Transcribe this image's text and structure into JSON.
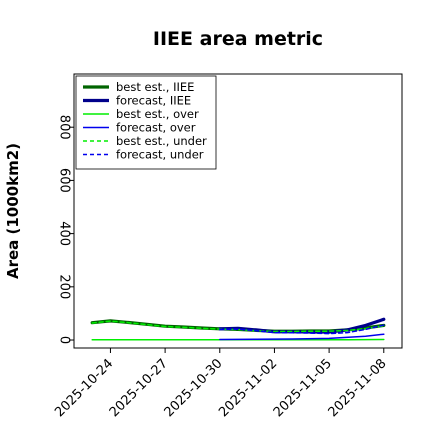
{
  "chart_data": {
    "type": "line",
    "title": "IIEE area metric",
    "xlabel": "",
    "ylabel": "Area (1000km2)",
    "ylim": [
      -30,
      1000
    ],
    "xlim": [
      "2025-10-22",
      "2025-11-09"
    ],
    "y_ticks": [
      0,
      200,
      400,
      600,
      800
    ],
    "x_ticks": [
      {
        "label": "2025-10-24",
        "color": "#000000"
      },
      {
        "label": "2025-10-27",
        "color": "#000000"
      },
      {
        "label": "2025-10-30",
        "color": "#008000"
      },
      {
        "label": "2025-11-02",
        "color": "#000000"
      },
      {
        "label": "2025-11-05",
        "color": "#000000"
      },
      {
        "label": "2025-11-08",
        "color": "#000000"
      }
    ],
    "grid": false,
    "legend_position": "top-left",
    "series": [
      {
        "name": "best est., IIEE",
        "color": "#006400",
        "width": 3.2,
        "dash": "",
        "x": [
          "2025-10-23",
          "2025-10-24",
          "2025-10-25",
          "2025-10-26",
          "2025-10-27",
          "2025-10-28",
          "2025-10-29",
          "2025-10-30",
          "2025-10-31",
          "2025-11-01",
          "2025-11-02",
          "2025-11-03",
          "2025-11-04",
          "2025-11-05",
          "2025-11-06",
          "2025-11-07",
          "2025-11-08"
        ],
        "y": [
          65,
          72,
          66,
          59,
          52,
          49,
          45,
          42,
          40,
          36,
          33,
          33,
          34,
          34,
          38,
          45,
          55
        ]
      },
      {
        "name": "forecast, IIEE",
        "color": "#00008b",
        "width": 3.2,
        "dash": "",
        "x": [
          "2025-10-30",
          "2025-10-31",
          "2025-11-01",
          "2025-11-02",
          "2025-11-03",
          "2025-11-04",
          "2025-11-05",
          "2025-11-06",
          "2025-11-07",
          "2025-11-08"
        ],
        "y": [
          42,
          44,
          38,
          31,
          31,
          30,
          30,
          38,
          55,
          78
        ]
      },
      {
        "name": "best est., over",
        "color": "#00ee00",
        "width": 1.5,
        "dash": "",
        "x": [
          "2025-10-23",
          "2025-10-25",
          "2025-10-27",
          "2025-10-29",
          "2025-10-31",
          "2025-11-02",
          "2025-11-04",
          "2025-11-06",
          "2025-11-08"
        ],
        "y": [
          1,
          1,
          1,
          1,
          1,
          1,
          1,
          1,
          2
        ]
      },
      {
        "name": "forecast, over",
        "color": "#0000ee",
        "width": 1.5,
        "dash": "",
        "x": [
          "2025-10-30",
          "2025-11-01",
          "2025-11-03",
          "2025-11-05",
          "2025-11-07",
          "2025-11-08"
        ],
        "y": [
          2,
          3,
          4,
          6,
          14,
          22
        ]
      },
      {
        "name": "best est., under",
        "color": "#00ee00",
        "width": 1.5,
        "dash": "4,3",
        "x": [
          "2025-10-23",
          "2025-10-24",
          "2025-10-25",
          "2025-10-26",
          "2025-10-27",
          "2025-10-28",
          "2025-10-29",
          "2025-10-30",
          "2025-10-31",
          "2025-11-01",
          "2025-11-02",
          "2025-11-03",
          "2025-11-04",
          "2025-11-05",
          "2025-11-06",
          "2025-11-07",
          "2025-11-08"
        ],
        "y": [
          64,
          71,
          65,
          58,
          51,
          48,
          44,
          41,
          39,
          35,
          32,
          32,
          33,
          33,
          36,
          43,
          53
        ]
      },
      {
        "name": "forecast, under",
        "color": "#0000ee",
        "width": 1.5,
        "dash": "4,3",
        "x": [
          "2025-10-30",
          "2025-10-31",
          "2025-11-01",
          "2025-11-02",
          "2025-11-03",
          "2025-11-04",
          "2025-11-05",
          "2025-11-06",
          "2025-11-07",
          "2025-11-08"
        ],
        "y": [
          40,
          41,
          35,
          28,
          27,
          26,
          24,
          28,
          40,
          56
        ]
      }
    ]
  }
}
